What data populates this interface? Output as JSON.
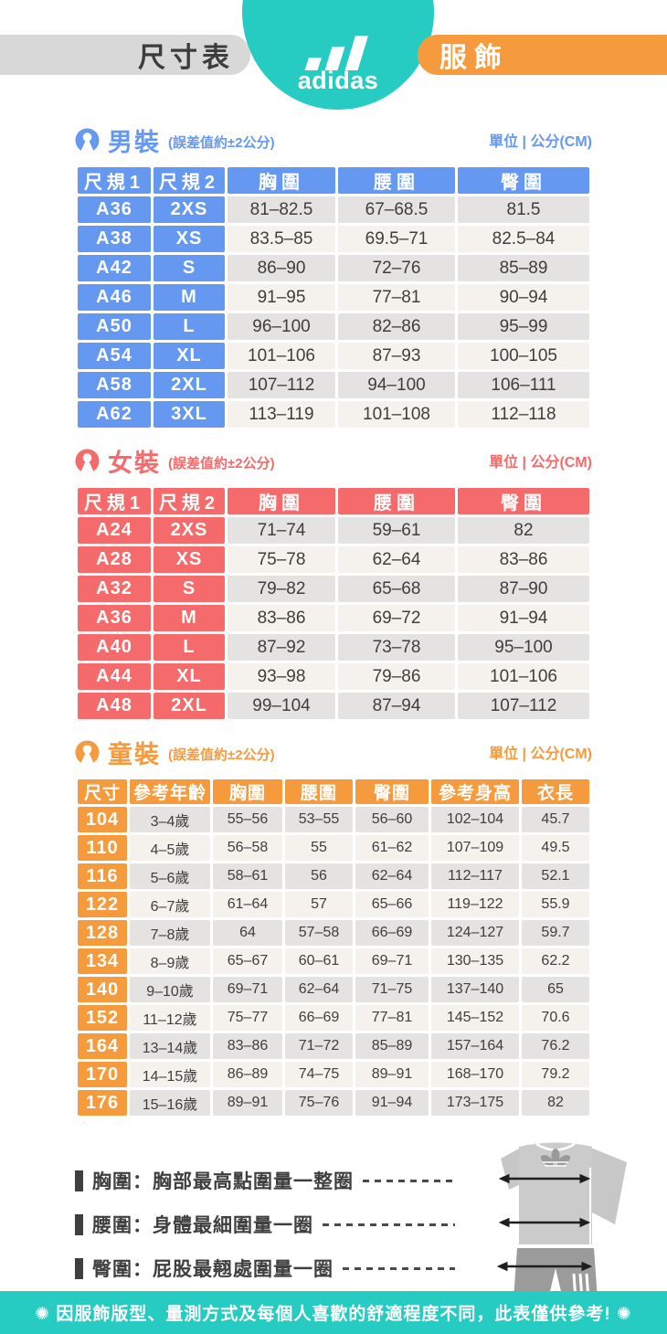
{
  "header": {
    "left_tab": "尺寸表",
    "brand": "adidas",
    "right_tab": "服飾"
  },
  "tolerance_note": "(誤差值約±2公分)",
  "unit_label": "單位 | 公分(CM)",
  "sections": [
    {
      "id": "men",
      "title": "男裝",
      "accent": "#6598F1",
      "columns": [
        "尺規1",
        "尺規2",
        "胸圍",
        "腰圍",
        "臀圍"
      ],
      "rows": [
        [
          "A36",
          "2XS",
          "81–82.5",
          "67–68.5",
          "81.5"
        ],
        [
          "A38",
          "XS",
          "83.5–85",
          "69.5–71",
          "82.5–84"
        ],
        [
          "A42",
          "S",
          "86–90",
          "72–76",
          "85–89"
        ],
        [
          "A46",
          "M",
          "91–95",
          "77–81",
          "90–94"
        ],
        [
          "A50",
          "L",
          "96–100",
          "82–86",
          "95–99"
        ],
        [
          "A54",
          "XL",
          "101–106",
          "87–93",
          "100–105"
        ],
        [
          "A58",
          "2XL",
          "107–112",
          "94–100",
          "106–111"
        ],
        [
          "A62",
          "3XL",
          "113–119",
          "101–108",
          "112–118"
        ]
      ]
    },
    {
      "id": "women",
      "title": "女裝",
      "accent": "#F56A6A",
      "columns": [
        "尺規1",
        "尺規2",
        "胸圍",
        "腰圍",
        "臀圍"
      ],
      "rows": [
        [
          "A24",
          "2XS",
          "71–74",
          "59–61",
          "82"
        ],
        [
          "A28",
          "XS",
          "75–78",
          "62–64",
          "83–86"
        ],
        [
          "A32",
          "S",
          "79–82",
          "65–68",
          "87–90"
        ],
        [
          "A36",
          "M",
          "83–86",
          "69–72",
          "91–94"
        ],
        [
          "A40",
          "L",
          "87–92",
          "73–78",
          "95–100"
        ],
        [
          "A44",
          "XL",
          "93–98",
          "79–86",
          "101–106"
        ],
        [
          "A48",
          "2XL",
          "99–104",
          "87–94",
          "107–112"
        ]
      ]
    },
    {
      "id": "kids",
      "title": "童裝",
      "accent": "#F59B3E",
      "columns": [
        "尺寸",
        "參考年齡",
        "胸圍",
        "腰圍",
        "臀圍",
        "參考身高",
        "衣長"
      ],
      "rows": [
        [
          "104",
          "3–4歲",
          "55–56",
          "53–55",
          "56–60",
          "102–104",
          "45.7"
        ],
        [
          "110",
          "4–5歲",
          "56–58",
          "55",
          "61–62",
          "107–109",
          "49.5"
        ],
        [
          "116",
          "5–6歲",
          "58–61",
          "56",
          "62–64",
          "112–117",
          "52.1"
        ],
        [
          "122",
          "6–7歲",
          "61–64",
          "57",
          "65–66",
          "119–122",
          "55.9"
        ],
        [
          "128",
          "7–8歲",
          "64",
          "57–58",
          "66–69",
          "124–127",
          "59.7"
        ],
        [
          "134",
          "8–9歲",
          "65–67",
          "60–61",
          "69–71",
          "130–135",
          "62.2"
        ],
        [
          "140",
          "9–10歲",
          "69–71",
          "62–64",
          "71–75",
          "137–140",
          "65"
        ],
        [
          "152",
          "11–12歲",
          "75–77",
          "66–69",
          "77–81",
          "145–152",
          "70.6"
        ],
        [
          "164",
          "13–14歲",
          "83–86",
          "71–72",
          "85–89",
          "157–164",
          "76.2"
        ],
        [
          "170",
          "14–15歲",
          "86–89",
          "74–75",
          "89–91",
          "168–170",
          "79.2"
        ],
        [
          "176",
          "15–16歲",
          "89–91",
          "75–76",
          "91–94",
          "173–175",
          "82"
        ]
      ]
    }
  ],
  "legend": {
    "items": [
      {
        "label": "胸圍：胸部最高點圍量一整圈"
      },
      {
        "label": "腰圍：身體最細圍量一圈"
      },
      {
        "label": "臀圍：屁股最翹處圍量一圈"
      }
    ]
  },
  "footer": {
    "text": "✺ 因服飾版型、量測方式及每個人喜歡的舒適程度不同，此表僅供參考! ✺"
  },
  "colors": {
    "teal": "#26CCC2",
    "orange": "#F59B3E",
    "blue": "#6598F1",
    "red": "#F56A6A",
    "gray_pill": "#D8D8D8",
    "row_dark": "#E4E3E1",
    "row_light": "#F5F2EE",
    "text_dark": "#3C3C3C"
  }
}
